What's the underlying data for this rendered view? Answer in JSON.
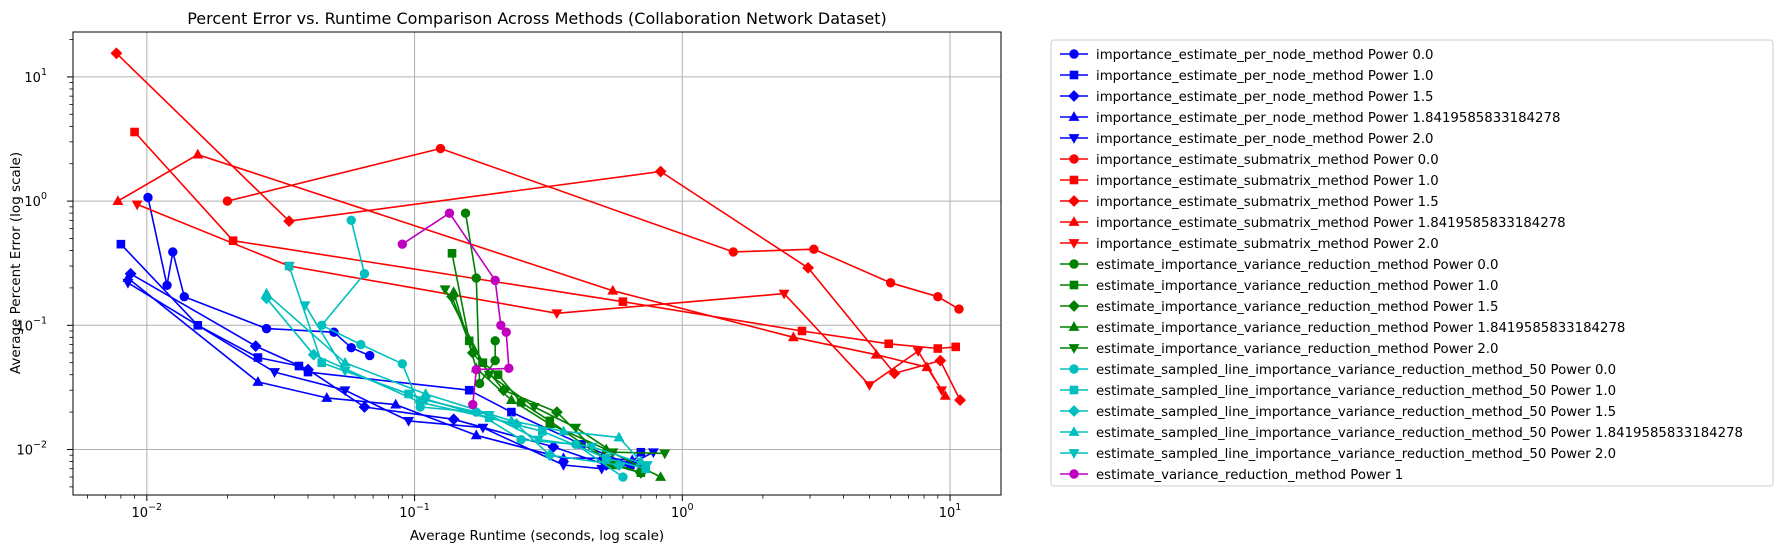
{
  "chart_data": {
    "type": "line",
    "title": "Percent Error vs. Runtime Comparison Across Methods (Collaboration Network Dataset)",
    "xlabel": "Average Runtime (seconds, log scale)",
    "ylabel": "Average Percent Error (log scale)",
    "xscale": "log",
    "yscale": "log",
    "xlim": [
      0.0053,
      15.5
    ],
    "ylim": [
      0.0043,
      23
    ],
    "x_ticks": [
      {
        "value": 0.01,
        "base": "10",
        "exp": "−2"
      },
      {
        "value": 0.1,
        "base": "10",
        "exp": "−1"
      },
      {
        "value": 1,
        "base": "10",
        "exp": "0"
      },
      {
        "value": 10,
        "base": "10",
        "exp": "1"
      }
    ],
    "y_ticks": [
      {
        "value": 0.01,
        "base": "10",
        "exp": "−2"
      },
      {
        "value": 0.1,
        "base": "10",
        "exp": "−1"
      },
      {
        "value": 1,
        "base": "10",
        "exp": "0"
      },
      {
        "value": 10,
        "base": "10",
        "exp": "1"
      }
    ],
    "grid": true,
    "legend_position": "outside right, top",
    "series": [
      {
        "name": "importance_estimate_per_node_method Power 0.0",
        "color": "#0000ff",
        "marker": "circle",
        "points": [
          [
            0.0101,
            1.07
          ],
          [
            0.0119,
            0.21
          ],
          [
            0.0125,
            0.39
          ],
          [
            0.0138,
            0.17
          ],
          [
            0.028,
            0.094
          ],
          [
            0.05,
            0.088
          ],
          [
            0.058,
            0.066
          ],
          [
            0.068,
            0.057
          ]
        ]
      },
      {
        "name": "importance_estimate_per_node_method Power 1.0",
        "color": "#0000ff",
        "marker": "square",
        "points": [
          [
            0.008,
            0.45
          ],
          [
            0.0155,
            0.1
          ],
          [
            0.026,
            0.055
          ],
          [
            0.037,
            0.047
          ],
          [
            0.04,
            0.042
          ],
          [
            0.16,
            0.03
          ],
          [
            0.23,
            0.02
          ],
          [
            0.42,
            0.011
          ],
          [
            0.64,
            0.0075
          ],
          [
            0.7,
            0.0095
          ]
        ]
      },
      {
        "name": "importance_estimate_per_node_method Power 1.5",
        "color": "#0000ff",
        "marker": "diamond",
        "points": [
          [
            0.0087,
            0.26
          ],
          [
            0.0255,
            0.068
          ],
          [
            0.04,
            0.044
          ],
          [
            0.065,
            0.022
          ],
          [
            0.14,
            0.0175
          ],
          [
            0.33,
            0.0105
          ],
          [
            0.52,
            0.0075
          ],
          [
            0.7,
            0.0075
          ]
        ]
      },
      {
        "name": "importance_estimate_per_node_method Power 1.8419585833184278",
        "color": "#0000ff",
        "marker": "triangle-up",
        "points": [
          [
            0.0085,
            0.24
          ],
          [
            0.026,
            0.035
          ],
          [
            0.047,
            0.026
          ],
          [
            0.085,
            0.023
          ],
          [
            0.17,
            0.013
          ],
          [
            0.36,
            0.0085
          ],
          [
            0.5,
            0.0085
          ],
          [
            0.65,
            0.0082
          ]
        ]
      },
      {
        "name": "importance_estimate_per_node_method Power 2.0",
        "color": "#0000ff",
        "marker": "triangle-down",
        "points": [
          [
            0.0085,
            0.22
          ],
          [
            0.03,
            0.042
          ],
          [
            0.055,
            0.03
          ],
          [
            0.095,
            0.017
          ],
          [
            0.18,
            0.015
          ],
          [
            0.36,
            0.0075
          ],
          [
            0.5,
            0.007
          ],
          [
            0.63,
            0.0075
          ],
          [
            0.78,
            0.0095
          ]
        ]
      },
      {
        "name": "importance_estimate_submatrix_method Power 0.0",
        "color": "#ff0000",
        "marker": "circle",
        "points": [
          [
            0.02,
            1.0
          ],
          [
            0.125,
            2.65
          ],
          [
            1.55,
            0.39
          ],
          [
            3.1,
            0.41
          ],
          [
            6,
            0.22
          ],
          [
            9,
            0.17
          ],
          [
            10.8,
            0.135
          ]
        ]
      },
      {
        "name": "importance_estimate_submatrix_method Power 1.0",
        "color": "#ff0000",
        "marker": "square",
        "points": [
          [
            0.009,
            3.6
          ],
          [
            0.021,
            0.48
          ],
          [
            0.6,
            0.155
          ],
          [
            2.8,
            0.09
          ],
          [
            5.9,
            0.071
          ],
          [
            9,
            0.065
          ],
          [
            10.5,
            0.067
          ]
        ]
      },
      {
        "name": "importance_estimate_submatrix_method Power 1.5",
        "color": "#ff0000",
        "marker": "diamond",
        "points": [
          [
            0.0077,
            15.5
          ],
          [
            0.034,
            0.69
          ],
          [
            0.83,
            1.73
          ],
          [
            2.95,
            0.29
          ],
          [
            6.2,
            0.041
          ],
          [
            9.2,
            0.052
          ],
          [
            10.9,
            0.025
          ]
        ]
      },
      {
        "name": "importance_estimate_submatrix_method Power 1.8419585833184278",
        "color": "#ff0000",
        "marker": "triangle-up",
        "points": [
          [
            0.0078,
            1.0
          ],
          [
            0.0155,
            2.37
          ],
          [
            0.55,
            0.19
          ],
          [
            2.6,
            0.08
          ],
          [
            5.3,
            0.058
          ],
          [
            8.2,
            0.046
          ],
          [
            9.6,
            0.027
          ]
        ]
      },
      {
        "name": "importance_estimate_submatrix_method Power 2.0",
        "color": "#ff0000",
        "marker": "triangle-down",
        "points": [
          [
            0.0092,
            0.94
          ],
          [
            0.034,
            0.3
          ],
          [
            0.34,
            0.125
          ],
          [
            2.4,
            0.18
          ],
          [
            5,
            0.033
          ],
          [
            7.6,
            0.062
          ],
          [
            9.3,
            0.03
          ]
        ]
      },
      {
        "name": "estimate_importance_variance_reduction_method Power 0.0",
        "color": "#008000",
        "marker": "circle",
        "points": [
          [
            0.155,
            0.8
          ],
          [
            0.17,
            0.24
          ],
          [
            0.175,
            0.034
          ],
          [
            0.2,
            0.052
          ],
          [
            0.2,
            0.075
          ]
        ]
      },
      {
        "name": "estimate_importance_variance_reduction_method Power 1.0",
        "color": "#008000",
        "marker": "square",
        "points": [
          [
            0.138,
            0.38
          ],
          [
            0.16,
            0.075
          ],
          [
            0.18,
            0.05
          ],
          [
            0.205,
            0.04
          ],
          [
            0.25,
            0.024
          ],
          [
            0.32,
            0.017
          ],
          [
            0.55,
            0.0075
          ],
          [
            0.7,
            0.0065
          ]
        ]
      },
      {
        "name": "estimate_importance_variance_reduction_method Power 1.5",
        "color": "#008000",
        "marker": "diamond",
        "points": [
          [
            0.138,
            0.17
          ],
          [
            0.165,
            0.06
          ],
          [
            0.215,
            0.03
          ],
          [
            0.34,
            0.02
          ],
          [
            0.52,
            0.008
          ],
          [
            0.7,
            0.0065
          ]
        ]
      },
      {
        "name": "estimate_importance_variance_reduction_method Power 1.8419585833184278",
        "color": "#008000",
        "marker": "triangle-up",
        "points": [
          [
            0.14,
            0.185
          ],
          [
            0.17,
            0.045
          ],
          [
            0.23,
            0.025
          ],
          [
            0.32,
            0.016
          ],
          [
            0.52,
            0.01
          ],
          [
            0.83,
            0.006
          ]
        ]
      },
      {
        "name": "estimate_importance_variance_reduction_method Power 2.0",
        "color": "#008000",
        "marker": "triangle-down",
        "points": [
          [
            0.13,
            0.195
          ],
          [
            0.19,
            0.04
          ],
          [
            0.28,
            0.022
          ],
          [
            0.4,
            0.015
          ],
          [
            0.55,
            0.0095
          ],
          [
            0.86,
            0.0093
          ]
        ]
      },
      {
        "name": "estimate_sampled_line_importance_variance_reduction_method_50 Power 0.0",
        "color": "#00bfbf",
        "marker": "circle",
        "points": [
          [
            0.058,
            0.7
          ],
          [
            0.065,
            0.26
          ],
          [
            0.045,
            0.1
          ],
          [
            0.063,
            0.07
          ],
          [
            0.09,
            0.049
          ],
          [
            0.105,
            0.022
          ],
          [
            0.17,
            0.02
          ],
          [
            0.25,
            0.012
          ],
          [
            0.4,
            0.011
          ],
          [
            0.6,
            0.006
          ]
        ]
      },
      {
        "name": "estimate_sampled_line_importance_variance_reduction_method_50 Power 1.0",
        "color": "#00bfbf",
        "marker": "square",
        "points": [
          [
            0.034,
            0.3
          ],
          [
            0.045,
            0.05
          ],
          [
            0.095,
            0.028
          ],
          [
            0.19,
            0.018
          ],
          [
            0.3,
            0.014
          ],
          [
            0.52,
            0.0085
          ],
          [
            0.73,
            0.007
          ]
        ]
      },
      {
        "name": "estimate_sampled_line_importance_variance_reduction_method_50 Power 1.5",
        "color": "#00bfbf",
        "marker": "diamond",
        "points": [
          [
            0.028,
            0.165
          ],
          [
            0.042,
            0.058
          ],
          [
            0.105,
            0.024
          ],
          [
            0.24,
            0.016
          ],
          [
            0.32,
            0.009
          ],
          [
            0.58,
            0.0075
          ]
        ]
      },
      {
        "name": "estimate_sampled_line_importance_variance_reduction_method_50 Power 1.8419585833184278",
        "color": "#00bfbf",
        "marker": "triangle-up",
        "points": [
          [
            0.028,
            0.18
          ],
          [
            0.055,
            0.05
          ],
          [
            0.11,
            0.028
          ],
          [
            0.23,
            0.017
          ],
          [
            0.36,
            0.014
          ],
          [
            0.58,
            0.0125
          ],
          [
            0.7,
            0.008
          ]
        ]
      },
      {
        "name": "estimate_sampled_line_importance_variance_reduction_method_50 Power 2.0",
        "color": "#00bfbf",
        "marker": "triangle-down",
        "points": [
          [
            0.039,
            0.145
          ],
          [
            0.055,
            0.043
          ],
          [
            0.11,
            0.025
          ],
          [
            0.19,
            0.019
          ],
          [
            0.29,
            0.012
          ],
          [
            0.46,
            0.0105
          ],
          [
            0.74,
            0.0075
          ]
        ]
      },
      {
        "name": "estimate_variance_reduction_method Power 1",
        "color": "#bf00bf",
        "marker": "circle",
        "points": [
          [
            0.09,
            0.45
          ],
          [
            0.135,
            0.8
          ],
          [
            0.2,
            0.23
          ],
          [
            0.21,
            0.1
          ],
          [
            0.22,
            0.088
          ],
          [
            0.225,
            0.045
          ],
          [
            0.17,
            0.044
          ],
          [
            0.165,
            0.023
          ]
        ]
      }
    ]
  }
}
